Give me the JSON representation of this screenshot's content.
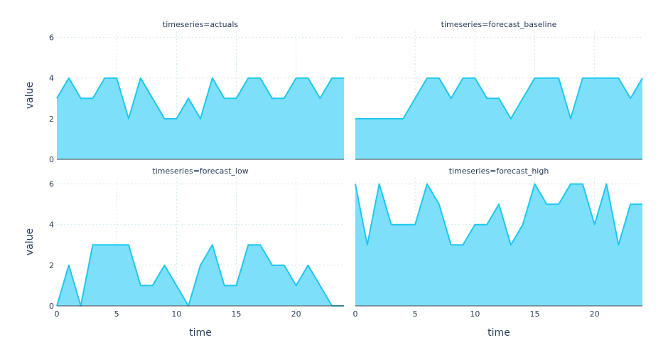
{
  "chart_data": {
    "type": "area",
    "facet_column": "timeseries",
    "xlabel": "time",
    "ylabel": "value",
    "xlim": [
      0,
      24
    ],
    "ylim": [
      0,
      6.3
    ],
    "x_ticks": [
      0,
      5,
      10,
      15,
      20
    ],
    "y_ticks": [
      0,
      2,
      4,
      6
    ],
    "grid": true,
    "line_color": "#1ec8ef",
    "fill_color": "#7edffb",
    "x": [
      0,
      1,
      2,
      3,
      4,
      5,
      6,
      7,
      8,
      9,
      10,
      11,
      12,
      13,
      14,
      15,
      16,
      17,
      18,
      19,
      20,
      21,
      22,
      23,
      24
    ],
    "panels": [
      {
        "title": "timeseries=actuals",
        "values": [
          3,
          4,
          3,
          3,
          4,
          4,
          2,
          4,
          3,
          2,
          2,
          3,
          2,
          4,
          3,
          3,
          4,
          4,
          3,
          3,
          4,
          4,
          3,
          4,
          4
        ]
      },
      {
        "title": "timeseries=forecast_baseline",
        "values": [
          2,
          2,
          2,
          2,
          2,
          3,
          4,
          4,
          3,
          4,
          4,
          3,
          3,
          2,
          3,
          4,
          4,
          4,
          2,
          4,
          4,
          4,
          4,
          3,
          4
        ]
      },
      {
        "title": "timeseries=forecast_low",
        "values": [
          0,
          2,
          0,
          3,
          3,
          3,
          3,
          1,
          1,
          2,
          1,
          0,
          2,
          3,
          1,
          1,
          3,
          3,
          2,
          2,
          1,
          2,
          1,
          0,
          0
        ]
      },
      {
        "title": "timeseries=forecast_high",
        "values": [
          6,
          3,
          6,
          4,
          4,
          4,
          6,
          5,
          3,
          3,
          4,
          4,
          5,
          3,
          4,
          6,
          5,
          5,
          6,
          6,
          4,
          6,
          3,
          5,
          5
        ]
      }
    ]
  }
}
